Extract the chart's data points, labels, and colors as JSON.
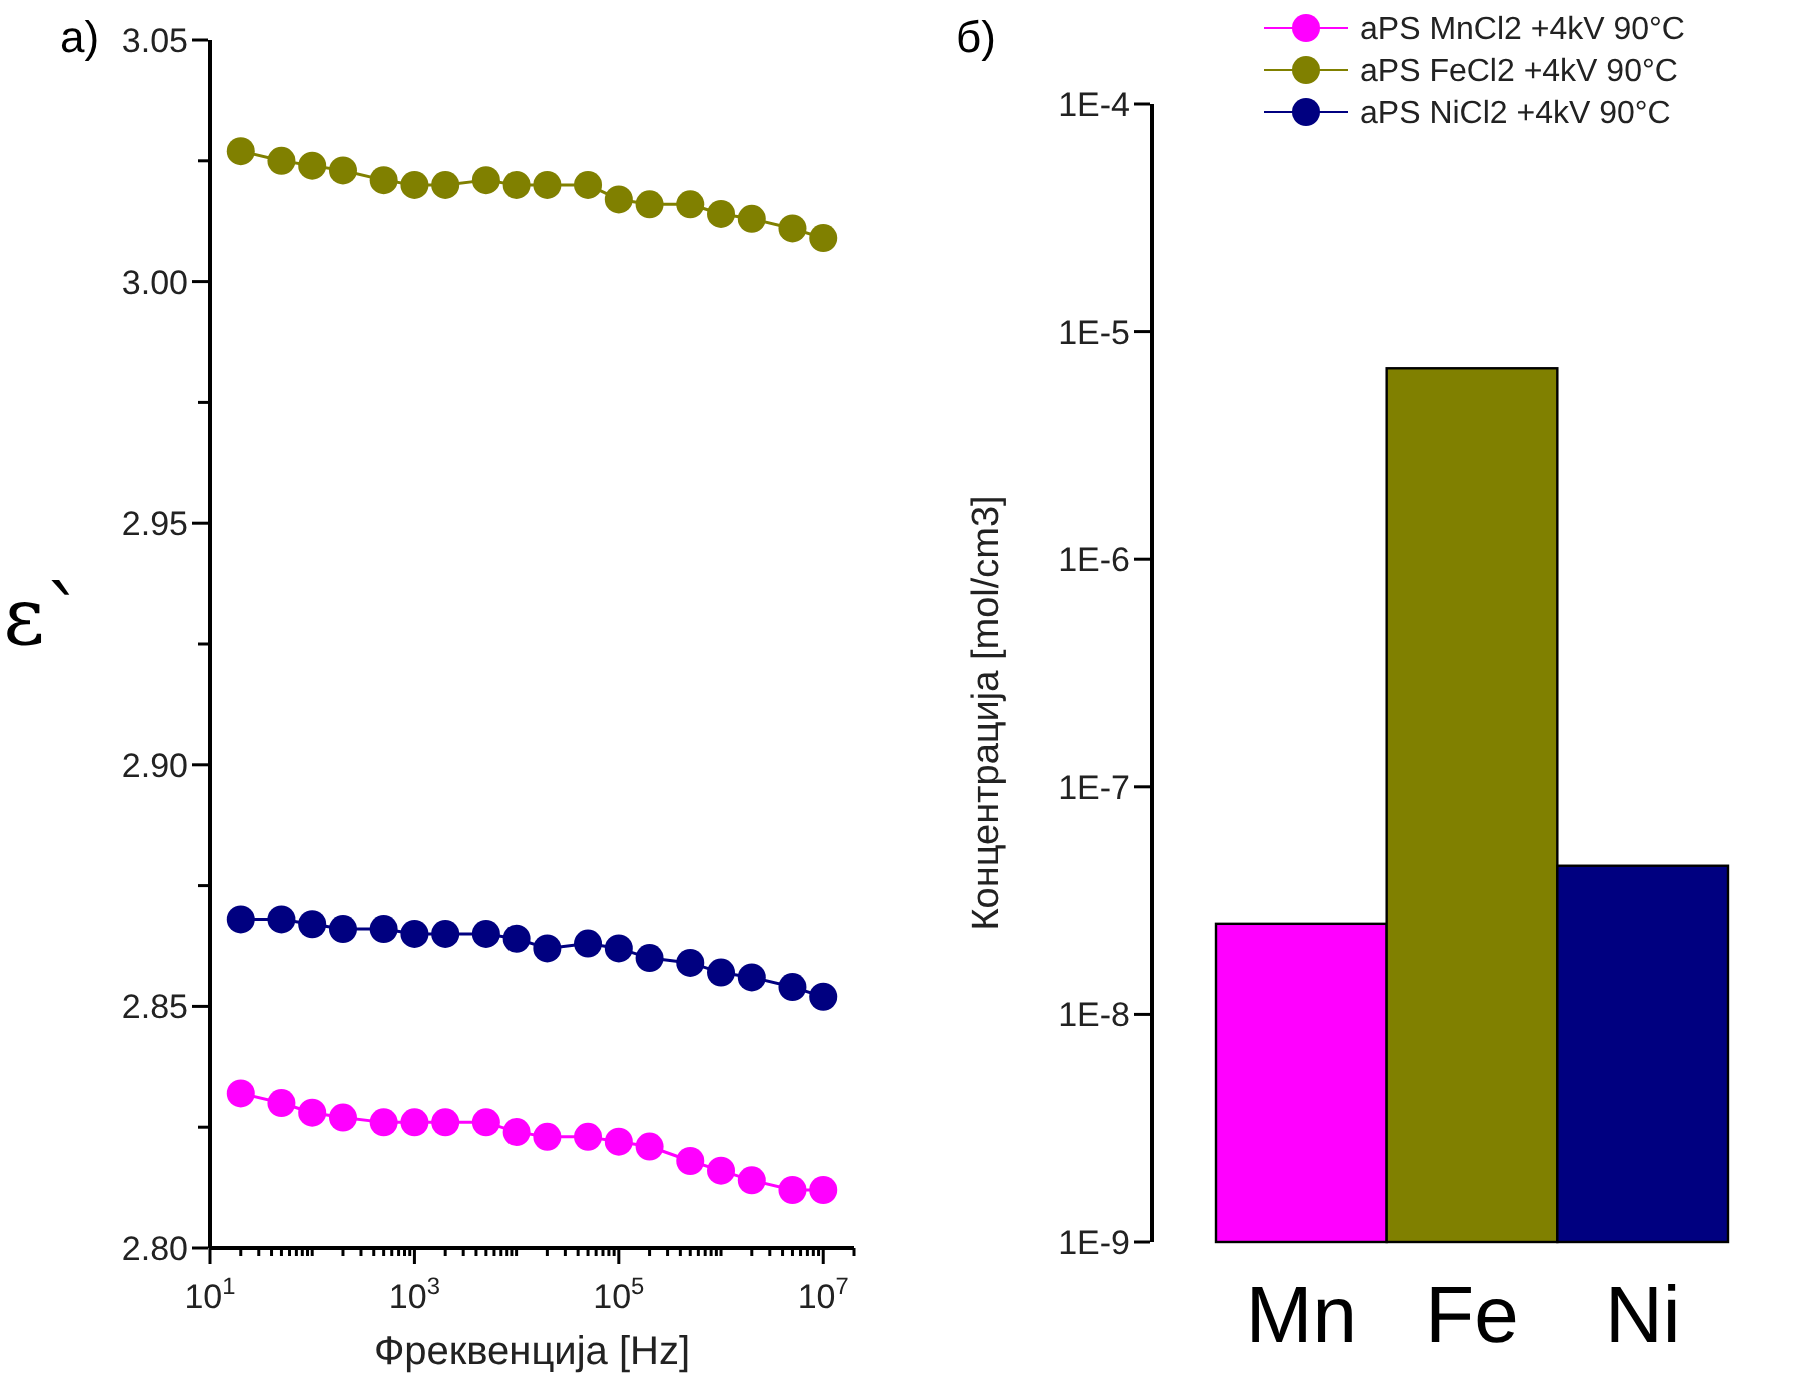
{
  "chart_data": [
    {
      "type": "line",
      "title": "a)",
      "xlabel": "Фреквенција [Hz]",
      "ylabel": "ε`",
      "log": "x",
      "marker": "circle",
      "line_style": "solid",
      "legend": "top right",
      "grid": false,
      "x": [
        20,
        50,
        100,
        200,
        500,
        1000,
        2000,
        5000,
        10000,
        20000,
        50000,
        100000,
        200000,
        500000,
        1000000,
        2000000,
        5000000,
        10000000
      ],
      "xlim": [
        10,
        20000000
      ],
      "ylim": [
        2.8,
        3.05
      ],
      "xticks": [
        {
          "value": 10,
          "label": "10$^{1}$"
        },
        {
          "value": 20,
          "label": null
        },
        {
          "value": 30,
          "label": null
        },
        {
          "value": 40,
          "label": null
        },
        {
          "value": 50,
          "label": null
        },
        {
          "value": 60,
          "label": null
        },
        {
          "value": 70,
          "label": null
        },
        {
          "value": 80,
          "label": null
        },
        {
          "value": 90,
          "label": null
        },
        {
          "value": 100,
          "label": null
        },
        {
          "value": 200,
          "label": null
        },
        {
          "value": 300,
          "label": null
        },
        {
          "value": 400,
          "label": null
        },
        {
          "value": 500,
          "label": null
        },
        {
          "value": 600,
          "label": null
        },
        {
          "value": 700,
          "label": null
        },
        {
          "value": 800,
          "label": null
        },
        {
          "value": 900,
          "label": null
        },
        {
          "value": 1000,
          "label": "10$^{3}$"
        },
        {
          "value": 2000,
          "label": null
        },
        {
          "value": 3000,
          "label": null
        },
        {
          "value": 4000,
          "label": null
        },
        {
          "value": 5000,
          "label": null
        },
        {
          "value": 6000,
          "label": null
        },
        {
          "value": 7000,
          "label": null
        },
        {
          "value": 8000,
          "label": null
        },
        {
          "value": 9000,
          "label": null
        },
        {
          "value": 10000,
          "label": null
        },
        {
          "value": 20000,
          "label": null
        },
        {
          "value": 30000,
          "label": null
        },
        {
          "value": 40000,
          "label": null
        },
        {
          "value": 50000,
          "label": null
        },
        {
          "value": 60000,
          "label": null
        },
        {
          "value": 70000,
          "label": null
        },
        {
          "value": 80000,
          "label": null
        },
        {
          "value": 90000,
          "label": null
        },
        {
          "value": 100000,
          "label": "10$^{5}$"
        },
        {
          "value": 200000,
          "label": null
        },
        {
          "value": 300000,
          "label": null
        },
        {
          "value": 400000,
          "label": null
        },
        {
          "value": 500000,
          "label": null
        },
        {
          "value": 600000,
          "label": null
        },
        {
          "value": 700000,
          "label": null
        },
        {
          "value": 800000,
          "label": null
        },
        {
          "value": 900000,
          "label": null
        },
        {
          "value": 1000000,
          "label": null
        },
        {
          "value": 2000000,
          "label": null
        },
        {
          "value": 3000000,
          "label": null
        },
        {
          "value": 4000000,
          "label": null
        },
        {
          "value": 5000000,
          "label": null
        },
        {
          "value": 6000000,
          "label": null
        },
        {
          "value": 7000000,
          "label": null
        },
        {
          "value": 8000000,
          "label": null
        },
        {
          "value": 9000000,
          "label": null
        },
        {
          "value": 10000000,
          "label": "10$^{7}$"
        },
        {
          "value": 20000000,
          "label": null
        }
      ],
      "yticks": [
        {
          "value": 2.8,
          "label": "2.80"
        },
        {
          "value": 2.825,
          "label": null
        },
        {
          "value": 2.85,
          "label": "2.85"
        },
        {
          "value": 2.875,
          "label": null
        },
        {
          "value": 2.9,
          "label": "2.90"
        },
        {
          "value": 2.925,
          "label": null
        },
        {
          "value": 2.95,
          "label": "2.95"
        },
        {
          "value": 2.975,
          "label": null
        },
        {
          "value": 3.0,
          "label": "3.00"
        },
        {
          "value": 3.025,
          "label": null
        },
        {
          "value": 3.05,
          "label": "3.05"
        }
      ],
      "series": [
        {
          "name": "aPS MnCl2 +4kV 90°C",
          "color": "#ff00ff",
          "values": [
            2.832,
            2.83,
            2.828,
            2.827,
            2.826,
            2.826,
            2.826,
            2.826,
            2.824,
            2.823,
            2.823,
            2.822,
            2.821,
            2.818,
            2.816,
            2.814,
            2.812,
            2.812
          ]
        },
        {
          "name": "aPS FeCl2 +4kV 90°C",
          "color": "#808000",
          "values": [
            3.027,
            3.025,
            3.024,
            3.023,
            3.021,
            3.02,
            3.02,
            3.021,
            3.02,
            3.02,
            3.02,
            3.017,
            3.016,
            3.016,
            3.014,
            3.013,
            3.011,
            3.009
          ]
        },
        {
          "name": "aPS NiCl2 +4kV 90°C",
          "color": "#000080",
          "values": [
            2.868,
            2.868,
            2.867,
            2.866,
            2.866,
            2.865,
            2.865,
            2.865,
            2.864,
            2.862,
            2.863,
            2.862,
            2.86,
            2.859,
            2.857,
            2.856,
            2.854,
            2.852
          ]
        }
      ]
    },
    {
      "type": "bar",
      "title": "б)",
      "ylabel": "Концентрација [mol/cm3]",
      "log": "y",
      "grid": false,
      "categories": [
        "Mn",
        "Fe",
        "Ni"
      ],
      "values": [
        2.5e-08,
        6.9e-06,
        4.5e-08
      ],
      "colors": [
        "#ff00ff",
        "#808000",
        "#000080"
      ],
      "ylim": [
        1e-09,
        0.0001
      ],
      "yticks": [
        {
          "value": 1e-09,
          "label": "1E-9"
        },
        {
          "value": 1e-08,
          "label": "1E-8"
        },
        {
          "value": 1e-07,
          "label": "1E-7"
        },
        {
          "value": 1e-06,
          "label": "1E-6"
        },
        {
          "value": 1e-05,
          "label": "1E-5"
        },
        {
          "value": 0.0001,
          "label": "1E-4"
        }
      ]
    }
  ]
}
